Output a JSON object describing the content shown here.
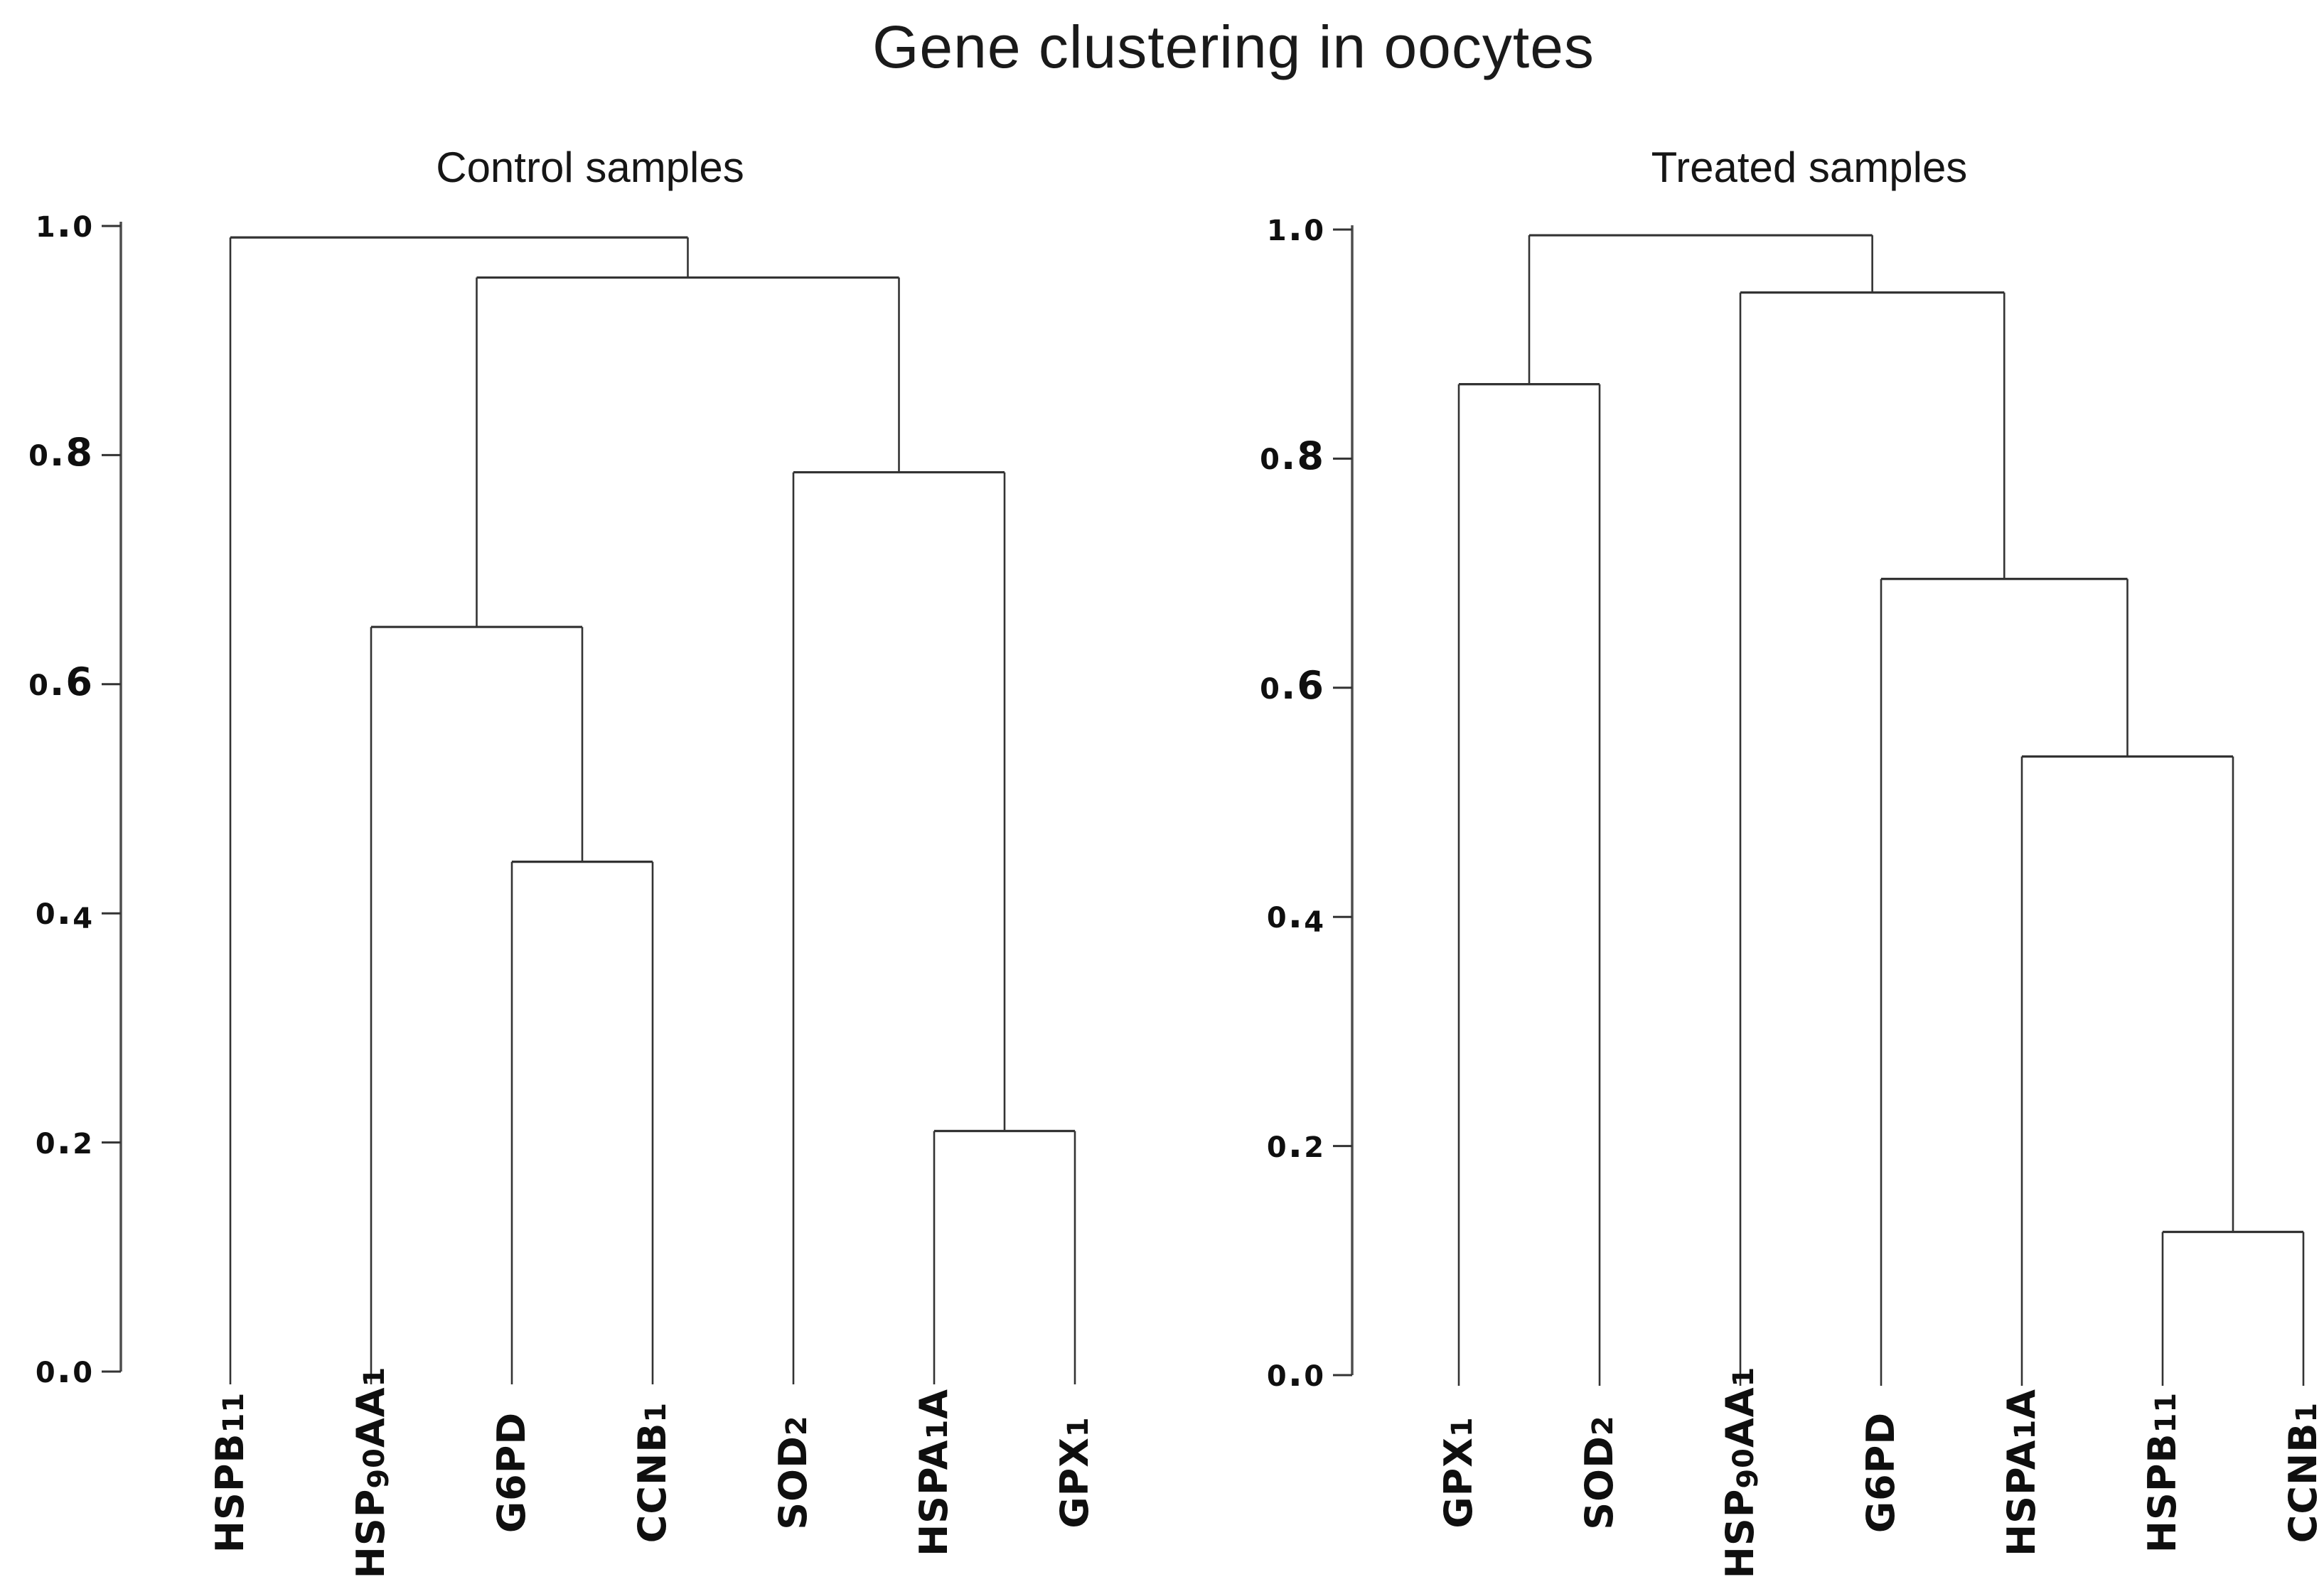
{
  "figure": {
    "title": "Gene clustering in oocytes"
  },
  "chart_data": {
    "type": "dendrogram",
    "title": "Gene clustering in oocytes",
    "ylabel": "",
    "axis_range": [
      0.0,
      1.0
    ],
    "grid": false,
    "panels": [
      {
        "title": "Control samples",
        "leaves": [
          "HSPB11",
          "HSP90AA1",
          "G6PD",
          "CCNB1",
          "SOD2",
          "HSPA1A",
          "GPX1"
        ],
        "merges": [
          {
            "a": "L2",
            "b": "L3",
            "h": 0.445,
            "members": "G6PD+CCNB1"
          },
          {
            "a": "L1",
            "b": "M0",
            "h": 0.65,
            "members": "HSP90AA1+(G6PD,CCNB1)"
          },
          {
            "a": "L5",
            "b": "L6",
            "h": 0.21,
            "members": "HSPA1A+GPX1"
          },
          {
            "a": "L4",
            "b": "M2",
            "h": 0.785,
            "members": "SOD2+(HSPA1A,GPX1)"
          },
          {
            "a": "M1",
            "b": "M3",
            "h": 0.955,
            "members": "left-cluster+right-cluster"
          },
          {
            "a": "L0",
            "b": "M4",
            "h": 0.99,
            "members": "HSPB11+rest"
          }
        ],
        "yticks": [
          "1.0",
          "0.8",
          "0.6",
          "0.4",
          "0.2",
          "0.0"
        ]
      },
      {
        "title": "Treated samples",
        "leaves": [
          "GPX1",
          "SOD2",
          "HSP90AA1",
          "G6PD",
          "HSPA1A",
          "HSPB11",
          "CCNB1"
        ],
        "merges": [
          {
            "a": "L0",
            "b": "L1",
            "h": 0.865,
            "members": "GPX1+SOD2"
          },
          {
            "a": "L5",
            "b": "L6",
            "h": 0.125,
            "members": "HSPB11+CCNB1"
          },
          {
            "a": "L4",
            "b": "M1",
            "h": 0.54,
            "members": "HSPA1A+(HSPB11,CCNB1)"
          },
          {
            "a": "L3",
            "b": "M2",
            "h": 0.695,
            "members": "G6PD+(HSPA1A,HSPB11,CCNB1)"
          },
          {
            "a": "L2",
            "b": "M3",
            "h": 0.945,
            "members": "HSP90AA1+cluster"
          },
          {
            "a": "M0",
            "b": "M4",
            "h": 0.995,
            "members": "root"
          }
        ],
        "yticks": [
          "1.0",
          "0.8",
          "0.6",
          "0.4",
          "0.2",
          "0.0"
        ]
      }
    ],
    "colors": {
      "line": "#333333",
      "axis": "#4d4d4d",
      "text": "#0f0f0f"
    }
  }
}
